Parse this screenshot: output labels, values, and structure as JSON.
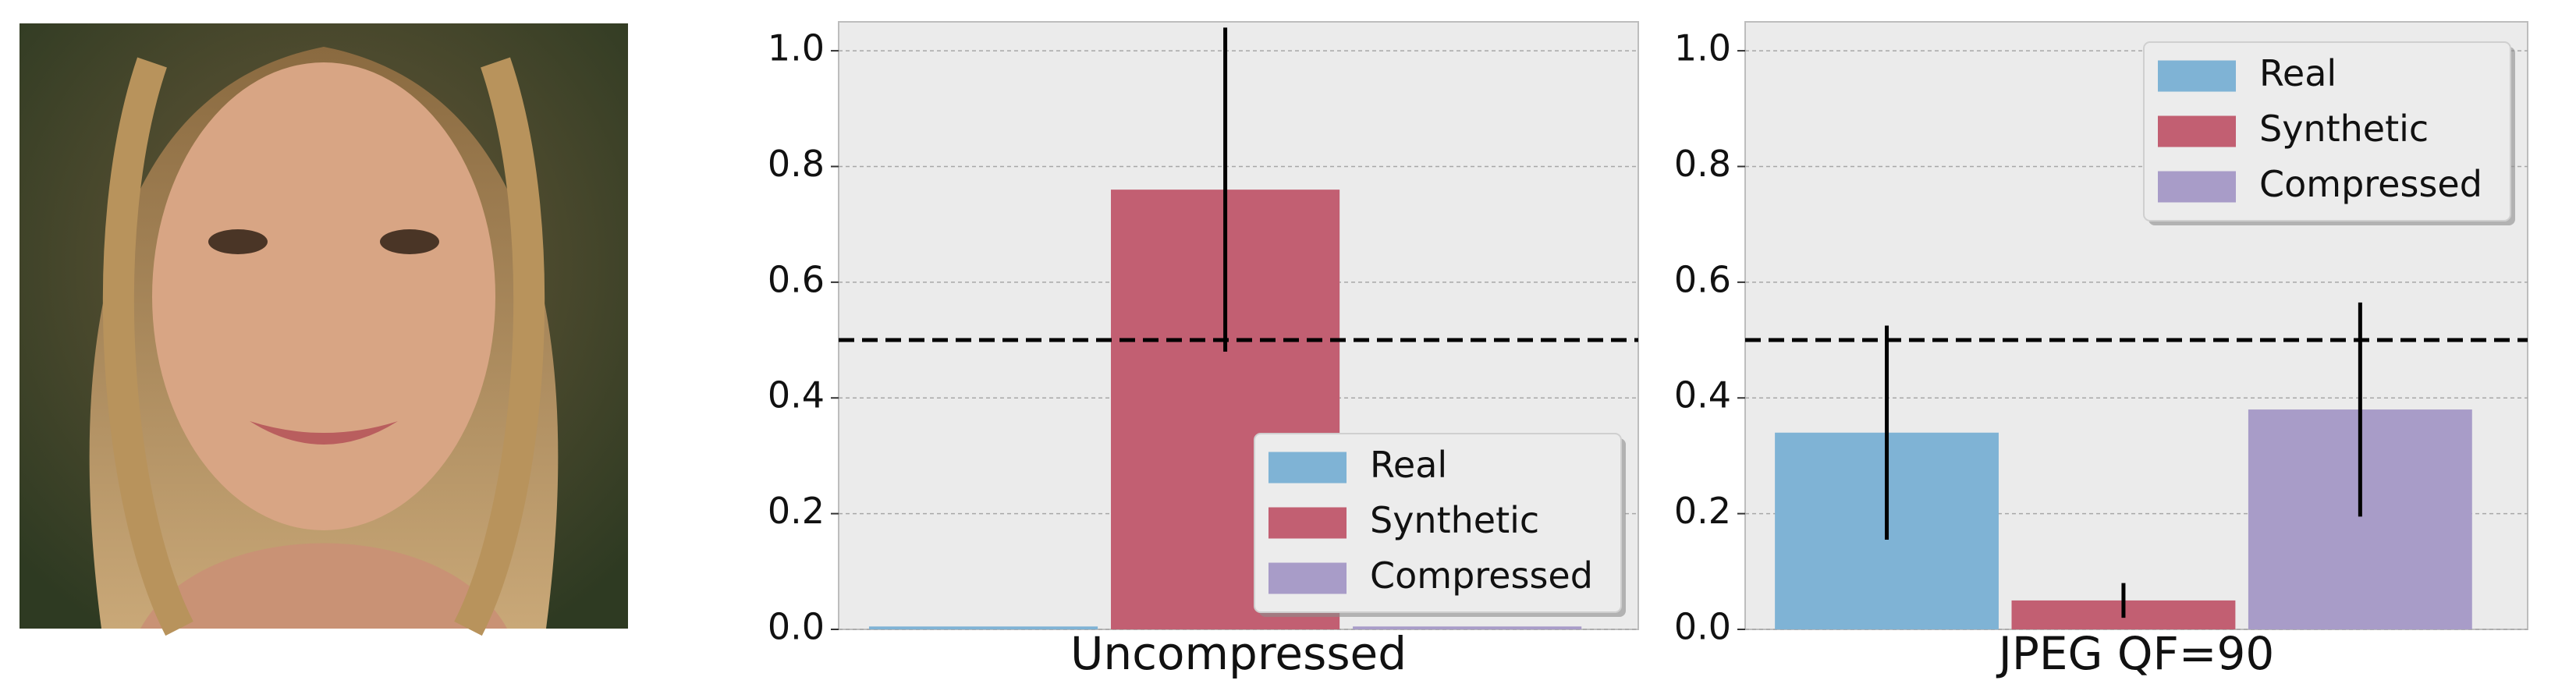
{
  "chart_data": [
    {
      "type": "bar",
      "xlabel": "Uncompressed",
      "series": [
        {
          "name": "Real",
          "color": "#7fb3d5",
          "values": [
            0.005
          ],
          "errors": [
            null
          ]
        },
        {
          "name": "Synthetic",
          "color": "#c25f72",
          "values": [
            0.76
          ],
          "errors": [
            0.28
          ]
        },
        {
          "name": "Compressed",
          "color": "#a89cc8",
          "values": [
            0.005
          ],
          "errors": [
            null
          ]
        }
      ],
      "ylim": [
        0,
        1.05
      ],
      "yticks": [
        {
          "value": 0,
          "label": "0.0"
        },
        0.2,
        0.4,
        0.6,
        0.8,
        {
          "value": 1,
          "label": "1.0"
        }
      ],
      "threshold": 0.5,
      "grid": true,
      "legend": "lower right"
    },
    {
      "type": "bar",
      "xlabel": "JPEG QF=90",
      "series": [
        {
          "name": "Real",
          "color": "#7fb3d5",
          "values": [
            0.34
          ],
          "errors": [
            0.185
          ]
        },
        {
          "name": "Synthetic",
          "color": "#c25f72",
          "values": [
            0.05
          ],
          "errors": [
            0.03
          ]
        },
        {
          "name": "Compressed",
          "color": "#a89cc8",
          "values": [
            0.38
          ],
          "errors": [
            0.185
          ]
        }
      ],
      "ylim": [
        0,
        1.05
      ],
      "yticks": [
        {
          "value": 0,
          "label": "0.0"
        },
        0.2,
        0.4,
        0.6,
        0.8,
        {
          "value": 1,
          "label": "1.0"
        }
      ],
      "threshold": 0.5,
      "grid": true,
      "legend": "upper right"
    }
  ]
}
